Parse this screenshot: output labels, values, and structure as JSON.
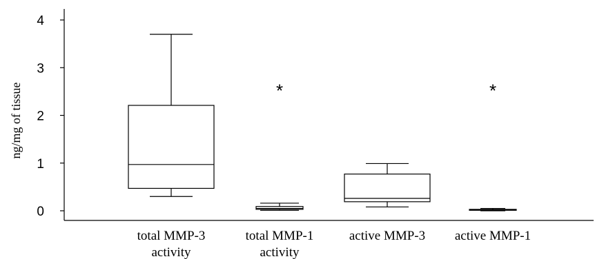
{
  "chart_data": {
    "type": "box",
    "title": "",
    "xlabel": "",
    "ylabel": "ng/mg of tissue",
    "ylim": [
      0,
      4
    ],
    "yticks": [
      "0",
      "1",
      "2",
      "3",
      "4"
    ],
    "categories": [
      {
        "line1": "total MMP-3",
        "line2": "activity"
      },
      {
        "line1": "total MMP-1",
        "line2": "activity"
      },
      {
        "line1": "active MMP-3",
        "line2": ""
      },
      {
        "line1": "active MMP-1",
        "line2": ""
      }
    ],
    "boxes": [
      {
        "min": 0.3,
        "q1": 0.47,
        "median": 0.97,
        "q3": 2.21,
        "max": 3.7,
        "significance": ""
      },
      {
        "min": 0.01,
        "q1": 0.03,
        "median": 0.05,
        "q3": 0.09,
        "max": 0.16,
        "significance": "*"
      },
      {
        "min": 0.08,
        "q1": 0.19,
        "median": 0.26,
        "q3": 0.77,
        "max": 0.99,
        "significance": ""
      },
      {
        "min": 0.0,
        "q1": 0.01,
        "median": 0.02,
        "q3": 0.03,
        "max": 0.05,
        "significance": "*"
      }
    ],
    "significance_y": 2.65,
    "grid": false,
    "legend": "none"
  }
}
